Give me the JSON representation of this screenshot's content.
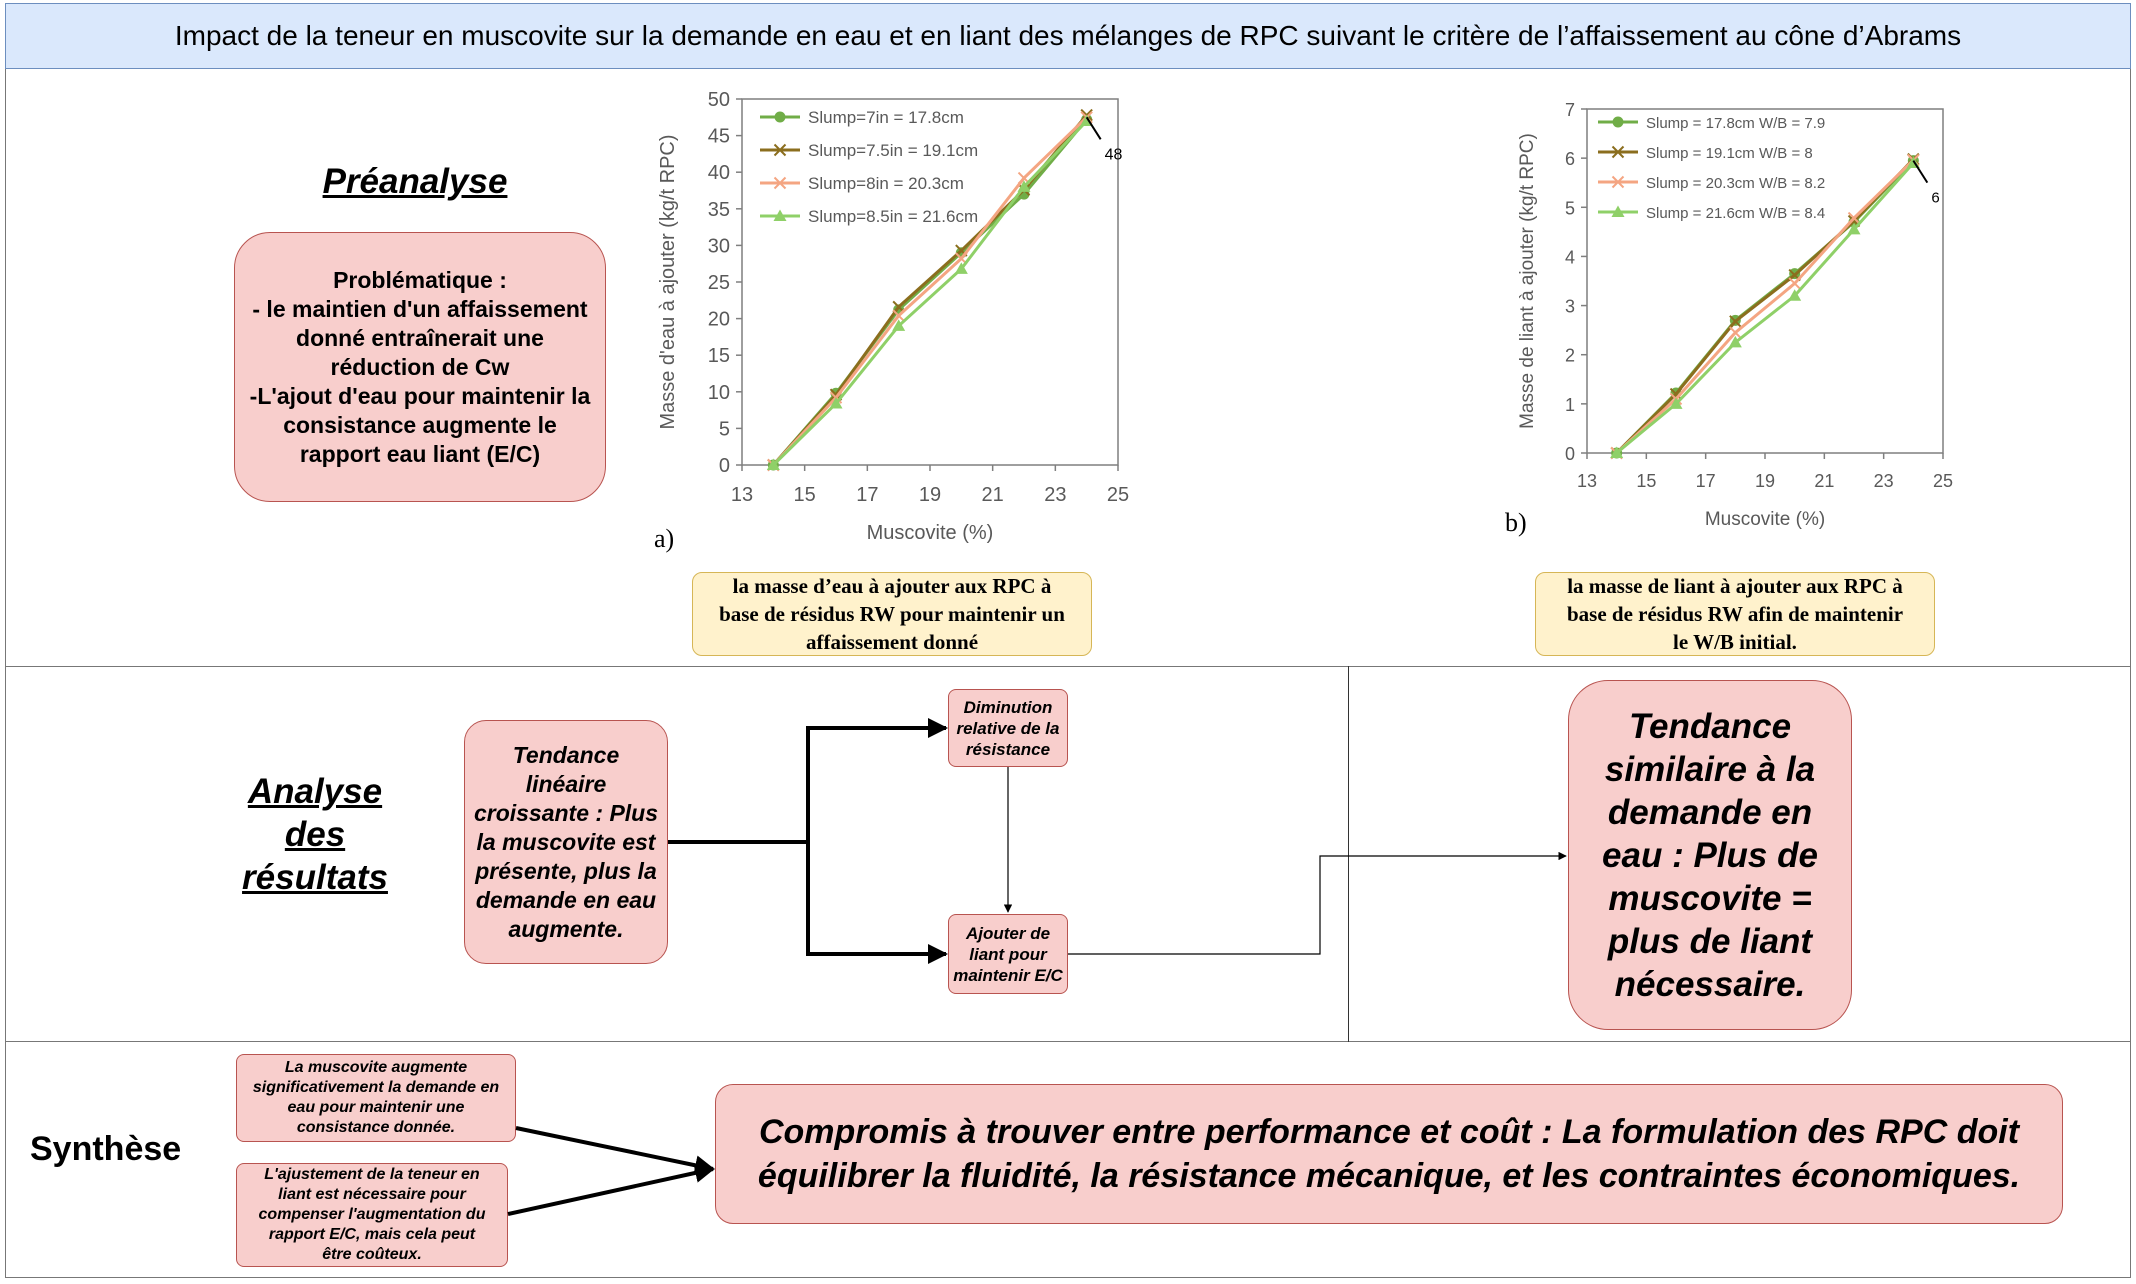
{
  "title": "Impact de la teneur en muscovite sur la demande en eau et en liant des mélanges de RPC suivant le critère de l’affaissement au cône d’Abrams",
  "preanalyse": {
    "heading": "Préanalyse",
    "problem_lines": [
      "Problématique :",
      "- le maintien d'un affaissement",
      "donné entraînerait une",
      "réduction de Cw",
      "-L'ajout d'eau pour maintenir la",
      "consistance augmente le",
      "rapport eau liant (E/C)"
    ]
  },
  "chart_a": {
    "panel_label": "a)",
    "caption_lines": [
      "la masse d’eau à ajouter aux RPC à",
      "base de résidus RW pour maintenir un",
      "affaissement donné"
    ]
  },
  "chart_b": {
    "panel_label": "b)",
    "caption_lines": [
      "la masse de liant à ajouter aux RPC à",
      "base de résidus RW afin de maintenir",
      "le W/B initial."
    ]
  },
  "analyse": {
    "heading_lines": [
      "Analyse",
      "des",
      "résultats"
    ],
    "trend_lines": [
      "Tendance",
      "linéaire",
      "croissante : Plus",
      "la muscovite est",
      "présente, plus la",
      "demande en eau",
      "augmente."
    ],
    "box_diminution_lines": [
      "Diminution",
      "relative de la",
      "résistance"
    ],
    "box_ajouter_lines": [
      "Ajouter de",
      "liant pour",
      "maintenir E/C"
    ],
    "big_trend_lines": [
      "Tendance",
      "similaire à la",
      "demande en",
      "eau : Plus de",
      "muscovite =",
      "plus de liant",
      "nécessaire."
    ]
  },
  "synthese": {
    "heading": "Synthèse",
    "box1_lines": [
      "La muscovite augmente",
      "significativement la demande en",
      "eau pour maintenir une",
      "consistance donnée."
    ],
    "box2_lines": [
      "L'ajustement de la teneur en",
      "liant est nécessaire pour",
      "compenser l'augmentation du",
      "rapport E/C, mais cela peut",
      "être coûteux."
    ],
    "conclusion_lines": [
      "Compromis à trouver entre performance et coût : La formulation des RPC doit",
      "équilibrer la fluidité, la résistance mécanique, et les contraintes économiques."
    ]
  },
  "colors": {
    "title_fill": "#dae8fc",
    "pink_fill": "#f8cecc",
    "pink_stroke": "#b85450",
    "yellow_fill": "#fff2cc",
    "yellow_stroke": "#d6b656"
  },
  "chart_data": [
    {
      "type": "line",
      "xlabel": "Muscovite (%)",
      "ylabel": "Masse d'eau à ajouter (kg/t RPC)",
      "xlim": [
        13,
        25
      ],
      "ylim": [
        0,
        50
      ],
      "xticks": [
        13,
        15,
        17,
        19,
        21,
        23,
        25
      ],
      "yticks": [
        0,
        5,
        10,
        15,
        20,
        25,
        30,
        35,
        40,
        45,
        50
      ],
      "legend_position": "top-left",
      "grid": false,
      "annotation": {
        "text": "48",
        "x": 24,
        "y": 47.5
      },
      "series": [
        {
          "name": "Slump=7in = 17.8cm",
          "color": "#70ad47",
          "marker": "circle",
          "x": [
            14,
            16,
            18,
            20,
            22,
            24
          ],
          "y": [
            0,
            9.8,
            21.2,
            29,
            37,
            47.2
          ]
        },
        {
          "name": "Slump=7.5in = 19.1cm",
          "color": "#8b6e1e",
          "marker": "x",
          "x": [
            14,
            16,
            18,
            20,
            22,
            24
          ],
          "y": [
            0,
            9.6,
            21.6,
            29.3,
            37.6,
            47.8
          ]
        },
        {
          "name": "Slump=8in = 20.3cm",
          "color": "#f4a582",
          "marker": "x",
          "x": [
            14,
            16,
            18,
            20,
            22,
            24
          ],
          "y": [
            0,
            9.2,
            20.4,
            28.2,
            39.2,
            47.5
          ]
        },
        {
          "name": "Slump=8.5in = 21.6cm",
          "color": "#8fd068",
          "marker": "triangle",
          "x": [
            14,
            16,
            18,
            20,
            22,
            24
          ],
          "y": [
            0,
            8.4,
            19,
            26.8,
            38,
            47
          ]
        }
      ]
    },
    {
      "type": "line",
      "xlabel": "Muscovite (%)",
      "ylabel": "Masse de liant à ajouter (kg/t RPC)",
      "xlim": [
        13,
        25
      ],
      "ylim": [
        0,
        7
      ],
      "xticks": [
        13,
        15,
        17,
        19,
        21,
        23,
        25
      ],
      "yticks": [
        0,
        1,
        2,
        3,
        4,
        5,
        6,
        7
      ],
      "legend_position": "top-left",
      "grid": false,
      "annotation": {
        "text": "6",
        "x": 24,
        "y": 5.95
      },
      "series": [
        {
          "name": "Slump = 17.8cm W/B = 7.9",
          "color": "#70ad47",
          "marker": "circle",
          "x": [
            14,
            16,
            18,
            20,
            22,
            24
          ],
          "y": [
            0,
            1.22,
            2.7,
            3.65,
            4.7,
            5.95
          ]
        },
        {
          "name": "Slump = 19.1cm W/B = 8",
          "color": "#8b6e1e",
          "marker": "x",
          "x": [
            14,
            16,
            18,
            20,
            22,
            24
          ],
          "y": [
            0,
            1.2,
            2.68,
            3.62,
            4.72,
            5.98
          ]
        },
        {
          "name": "Slump = 20.3cm W/B = 8.2",
          "color": "#f4a582",
          "marker": "x",
          "x": [
            14,
            16,
            18,
            20,
            22,
            24
          ],
          "y": [
            0,
            1.1,
            2.45,
            3.45,
            4.78,
            5.96
          ]
        },
        {
          "name": "Slump = 21.6cm W/B = 8.4",
          "color": "#8fd068",
          "marker": "triangle",
          "x": [
            14,
            16,
            18,
            20,
            22,
            24
          ],
          "y": [
            0,
            1.0,
            2.25,
            3.2,
            4.55,
            5.9
          ]
        }
      ]
    }
  ]
}
